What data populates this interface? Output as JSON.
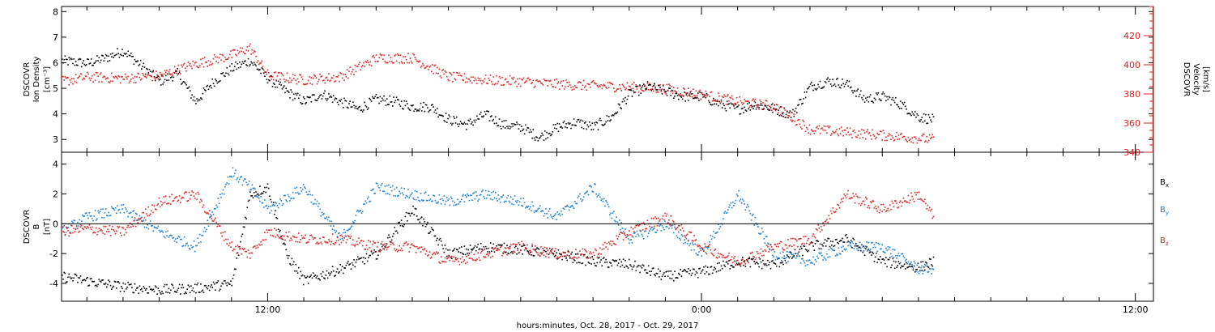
{
  "chart_data": {
    "x_axis": {
      "label": "hours:minutes, Oct. 28, 2017 - Oct. 29, 2017",
      "range_hours": [
        6.3,
        36.5
      ],
      "ticks": [
        {
          "hour": 12,
          "label": "12:00"
        },
        {
          "hour": 24,
          "label": "0:00"
        },
        {
          "hour": 36,
          "label": "12:00"
        }
      ],
      "minor_step_hours": 1
    },
    "panels": [
      {
        "type": "scatter",
        "left_axis": {
          "label_lines": [
            "DSCOVR",
            "Ion Density",
            "[cm⁻³]"
          ],
          "ylim": [
            2.5,
            8.2
          ],
          "ticks": [
            3,
            4,
            5,
            6,
            7,
            8
          ]
        },
        "right_axis": {
          "label_lines": [
            "DSCOVR",
            "Velocity",
            "[km/s]"
          ],
          "ylim": [
            340,
            440
          ],
          "ticks": [
            340,
            360,
            380,
            400,
            420
          ],
          "color": "#dd2222"
        },
        "series": [
          {
            "name": "Ion Density",
            "axis": "left",
            "color": "#000000",
            "points": [
              [
                6.3,
                6.1
              ],
              [
                7,
                6.0
              ],
              [
                7.5,
                6.2
              ],
              [
                8,
                6.5
              ],
              [
                8.5,
                5.9
              ],
              [
                9,
                5.3
              ],
              [
                9.5,
                5.6
              ],
              [
                10,
                4.5
              ],
              [
                10.5,
                5.3
              ],
              [
                11,
                5.8
              ],
              [
                11.5,
                6.1
              ],
              [
                12,
                5.4
              ],
              [
                12.5,
                4.9
              ],
              [
                13,
                4.5
              ],
              [
                13.5,
                4.8
              ],
              [
                14,
                4.5
              ],
              [
                14.5,
                4.2
              ],
              [
                15,
                4.6
              ],
              [
                15.5,
                4.5
              ],
              [
                16,
                4.3
              ],
              [
                16.5,
                4.3
              ],
              [
                17,
                3.8
              ],
              [
                17.5,
                3.6
              ],
              [
                18,
                4.0
              ],
              [
                18.5,
                3.6
              ],
              [
                19,
                3.5
              ],
              [
                19.5,
                3.1
              ],
              [
                20,
                3.5
              ],
              [
                20.5,
                3.7
              ],
              [
                21,
                3.5
              ],
              [
                21.5,
                3.9
              ],
              [
                22,
                4.8
              ],
              [
                22.5,
                5.1
              ],
              [
                23,
                4.9
              ],
              [
                23.5,
                4.7
              ],
              [
                24,
                4.7
              ],
              [
                24.5,
                4.4
              ],
              [
                25,
                4.2
              ],
              [
                25.5,
                4.4
              ],
              [
                26,
                4.2
              ],
              [
                26.5,
                4.0
              ],
              [
                27,
                5.1
              ],
              [
                27.5,
                5.3
              ],
              [
                28,
                5.2
              ],
              [
                28.5,
                4.6
              ],
              [
                29,
                4.7
              ],
              [
                29.5,
                4.4
              ],
              [
                30,
                3.9
              ],
              [
                30.4,
                3.8
              ]
            ]
          },
          {
            "name": "Velocity",
            "axis": "right",
            "color": "#dd2222",
            "points": [
              [
                6.3,
                389
              ],
              [
                7,
                392
              ],
              [
                8,
                391
              ],
              [
                9,
                393
              ],
              [
                10,
                401
              ],
              [
                11,
                407
              ],
              [
                11.5,
                412
              ],
              [
                12,
                393
              ],
              [
                13,
                390
              ],
              [
                14,
                392
              ],
              [
                15,
                405
              ],
              [
                16,
                405
              ],
              [
                17,
                392
              ],
              [
                18,
                390
              ],
              [
                19,
                389
              ],
              [
                20,
                387
              ],
              [
                21,
                386
              ],
              [
                22,
                385
              ],
              [
                23,
                384
              ],
              [
                24,
                380
              ],
              [
                25,
                375
              ],
              [
                26,
                372
              ],
              [
                27,
                356
              ],
              [
                28,
                354
              ],
              [
                29,
                352
              ],
              [
                30,
                350
              ],
              [
                30.4,
                349
              ]
            ]
          }
        ]
      },
      {
        "type": "scatter",
        "left_axis": {
          "label_lines": [
            "DSCOVR",
            "B",
            "[nT]"
          ],
          "ylim": [
            -5.2,
            4.8
          ],
          "ticks": [
            -4,
            -2,
            0,
            2,
            4
          ]
        },
        "zero_line": true,
        "legend": [
          "B",
          "B",
          "B"
        ],
        "legend_subscripts": [
          "x",
          "y",
          "z"
        ],
        "series": [
          {
            "name": "Bx",
            "color": "#000000",
            "points": [
              [
                6.3,
                -3.5
              ],
              [
                7,
                -3.8
              ],
              [
                8,
                -4.2
              ],
              [
                9,
                -4.4
              ],
              [
                10,
                -4.3
              ],
              [
                11,
                -4.0
              ],
              [
                11.5,
                2.0
              ],
              [
                12,
                2.5
              ],
              [
                12.5,
                -2.0
              ],
              [
                13,
                -3.8
              ],
              [
                14,
                -3.0
              ],
              [
                15,
                -2.0
              ],
              [
                16,
                1.0
              ],
              [
                17,
                -2.0
              ],
              [
                18,
                -1.5
              ],
              [
                19,
                -1.7
              ],
              [
                20,
                -2.0
              ],
              [
                21,
                -2.5
              ],
              [
                22,
                -2.7
              ],
              [
                23,
                -3.5
              ],
              [
                24,
                -3.2
              ],
              [
                25,
                -2.5
              ],
              [
                26,
                -2.7
              ],
              [
                27,
                -1.5
              ],
              [
                28,
                -1.0
              ],
              [
                29,
                -2.5
              ],
              [
                30,
                -2.9
              ],
              [
                30.4,
                -2.5
              ]
            ]
          },
          {
            "name": "By",
            "color": "#1b7fd0",
            "points": [
              [
                6.3,
                -0.5
              ],
              [
                7,
                0.5
              ],
              [
                8,
                1.0
              ],
              [
                9,
                -0.5
              ],
              [
                10,
                -1.5
              ],
              [
                11,
                3.5
              ],
              [
                11.5,
                2.5
              ],
              [
                12,
                1.0
              ],
              [
                13,
                2.5
              ],
              [
                14,
                -1.0
              ],
              [
                15,
                2.5
              ],
              [
                16,
                2.0
              ],
              [
                17,
                1.5
              ],
              [
                18,
                2.0
              ],
              [
                19,
                1.5
              ],
              [
                20,
                0.5
              ],
              [
                21,
                2.5
              ],
              [
                22,
                -1.0
              ],
              [
                23,
                0.0
              ],
              [
                24,
                -2.0
              ],
              [
                25,
                2.0
              ],
              [
                26,
                -2.0
              ],
              [
                27,
                -2.5
              ],
              [
                28,
                -1.5
              ],
              [
                29,
                -1.5
              ],
              [
                30,
                -3.0
              ],
              [
                30.4,
                -3.0
              ]
            ]
          },
          {
            "name": "Bz",
            "color": "#dd2222",
            "points": [
              [
                6.3,
                -0.5
              ],
              [
                7,
                -0.3
              ],
              [
                8,
                -0.5
              ],
              [
                9,
                1.5
              ],
              [
                10,
                2.0
              ],
              [
                11,
                -1.5
              ],
              [
                11.5,
                -2.0
              ],
              [
                12,
                -0.5
              ],
              [
                13,
                -1.0
              ],
              [
                14,
                -1.0
              ],
              [
                15,
                -1.5
              ],
              [
                16,
                -1.5
              ],
              [
                17,
                -2.5
              ],
              [
                18,
                -2.0
              ],
              [
                19,
                -1.5
              ],
              [
                20,
                -2.0
              ],
              [
                21,
                -2.0
              ],
              [
                22,
                -0.5
              ],
              [
                23,
                0.5
              ],
              [
                24,
                -1.5
              ],
              [
                25,
                -2.5
              ],
              [
                26,
                -1.5
              ],
              [
                27,
                -1.0
              ],
              [
                28,
                2.0
              ],
              [
                29,
                1.0
              ],
              [
                30,
                2.0
              ],
              [
                30.4,
                0.5
              ]
            ]
          }
        ]
      }
    ]
  }
}
